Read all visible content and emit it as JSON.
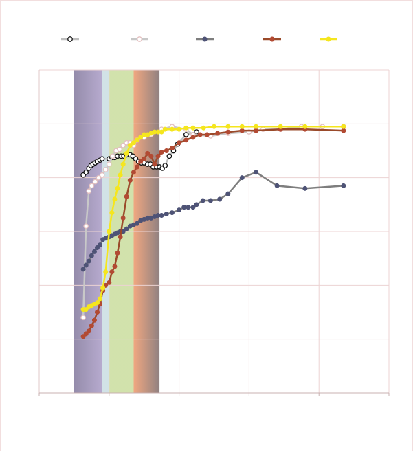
{
  "chart_data": {
    "type": "line",
    "title": "",
    "xlabel": "",
    "ylabel": "",
    "xlim": [
      0,
      500
    ],
    "ylim": [
      0,
      120
    ],
    "grid": true,
    "legend_position": "top",
    "background_bands": [
      {
        "x0": 50,
        "x1": 90,
        "color": "#b3a6cc"
      },
      {
        "x0": 90,
        "x1": 100,
        "color": "#cfe0e6"
      },
      {
        "x0": 100,
        "x1": 135,
        "color": "#cfe0a8"
      },
      {
        "x0": 135,
        "x1": 172,
        "color": "#f0a37a"
      }
    ],
    "series": [
      {
        "color": "#111111",
        "line_color": "#bdbdbd",
        "marker": "open-circle",
        "x": [
          63,
          67,
          71,
          74,
          77,
          80,
          83,
          87,
          90,
          100,
          104,
          108,
          112,
          117,
          121,
          125,
          130,
          134,
          138,
          142,
          146,
          150,
          155,
          159,
          163,
          168,
          172,
          176,
          180,
          186,
          192,
          198,
          210,
          225
        ],
        "y": [
          81,
          82,
          83.5,
          84.5,
          85,
          85.5,
          86,
          86.5,
          87,
          87,
          87.5,
          87.5,
          88,
          88,
          88,
          88.5,
          88.5,
          88,
          87,
          86,
          85.5,
          85.5,
          85,
          85,
          84,
          84,
          84,
          83.5,
          84.5,
          88,
          90,
          92.5,
          96,
          97
        ]
      },
      {
        "color": "#e3bfbf",
        "line_color": "#c8c8c8",
        "marker": "open-circle",
        "x": [
          63,
          67,
          71,
          75,
          80,
          85,
          90,
          95,
          100,
          105,
          110,
          115,
          120,
          125,
          130,
          135,
          140,
          150,
          160,
          175,
          190,
          210,
          220,
          245,
          270,
          300,
          320,
          345,
          375,
          405,
          435
        ],
        "y": [
          28,
          62,
          75,
          77,
          78.5,
          80,
          81,
          83,
          85,
          88,
          90,
          90.5,
          92,
          93,
          93,
          92,
          94,
          95,
          96,
          98,
          99,
          98,
          96,
          95.5,
          96.5,
          97,
          98,
          98,
          99,
          99,
          99
        ]
      },
      {
        "color": "#4e5376",
        "line_color": "#7e7e7e",
        "marker": "filled-circle",
        "x": [
          63,
          67,
          71,
          75,
          79,
          83,
          87,
          91,
          95,
          100,
          104,
          108,
          112,
          116,
          120,
          125,
          130,
          135,
          140,
          145,
          150,
          155,
          160,
          165,
          170,
          175,
          182,
          190,
          200,
          207,
          213,
          220,
          225,
          234,
          245,
          258,
          270,
          290,
          310,
          340,
          380,
          435
        ],
        "y": [
          46,
          47.5,
          49,
          51,
          52.5,
          54,
          55,
          57,
          57.5,
          58,
          58.5,
          59,
          59.5,
          60,
          60,
          61,
          62,
          62.5,
          63,
          64,
          64.5,
          65,
          65,
          65.5,
          66,
          66,
          66.5,
          67,
          68,
          69,
          69,
          69,
          70,
          71.5,
          71.5,
          72,
          74,
          80,
          82,
          77,
          76,
          77
        ]
      },
      {
        "color": "#b24a33",
        "line_color": "#9a4a2a",
        "marker": "filled-circle",
        "x": [
          63,
          67,
          71,
          75,
          79,
          83,
          87,
          91,
          95,
          100,
          104,
          108,
          112,
          116,
          120,
          125,
          130,
          135,
          140,
          145,
          150,
          155,
          160,
          165,
          170,
          175,
          182,
          190,
          200,
          210,
          220,
          230,
          240,
          255,
          270,
          290,
          310,
          345,
          380,
          435
        ],
        "y": [
          21,
          22,
          23,
          25,
          27,
          30,
          33,
          38,
          40,
          41,
          45,
          47,
          52,
          58,
          65,
          73,
          79,
          82,
          84,
          86,
          87,
          89,
          88,
          85,
          88,
          89.5,
          90,
          91,
          93,
          94,
          95,
          96,
          96,
          96.5,
          97,
          97.5,
          97.5,
          98,
          98,
          97.5
        ]
      },
      {
        "color": "#f5e61e",
        "line_color": "#f5e61e",
        "marker": "filled-circle",
        "x": [
          63,
          67,
          71,
          75,
          79,
          83,
          87,
          91,
          95,
          100,
          104,
          108,
          112,
          116,
          120,
          125,
          130,
          135,
          140,
          145,
          150,
          155,
          160,
          165,
          170,
          175,
          180,
          190,
          200,
          210,
          220,
          235,
          250,
          270,
          290,
          310,
          345,
          380,
          435
        ],
        "y": [
          31,
          31,
          32,
          32.5,
          33,
          33.5,
          35,
          39,
          45,
          60,
          67,
          72,
          76,
          81,
          85,
          89,
          92,
          93,
          94,
          95,
          96,
          96,
          96.5,
          97,
          97,
          97,
          98,
          98,
          98,
          98.5,
          98.5,
          98.5,
          99,
          99,
          99,
          99,
          99,
          99,
          99
        ]
      }
    ]
  }
}
